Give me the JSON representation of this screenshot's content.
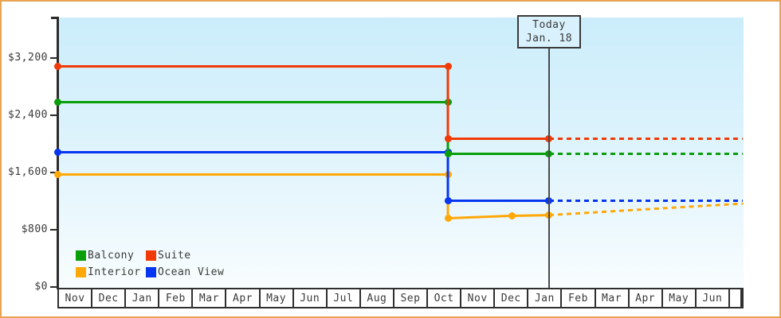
{
  "frame": {
    "border_color": "#e8a353",
    "background": "#ffffff"
  },
  "chart_data": {
    "type": "line",
    "title": "",
    "xlabel": "",
    "ylabel": "",
    "x_categories": [
      "Nov",
      "Dec",
      "Jan",
      "Feb",
      "Mar",
      "Apr",
      "May",
      "Jun",
      "Jul",
      "Aug",
      "Sep",
      "Oct",
      "Nov",
      "Dec",
      "Jan",
      "Feb",
      "Mar",
      "Apr",
      "May",
      "Jun"
    ],
    "y_ticks": [
      {
        "label": "$3,200",
        "value": 3200
      },
      {
        "label": "$2,400",
        "value": 2400
      },
      {
        "label": "$1,600",
        "value": 1600
      },
      {
        "label": "$800",
        "value": 800
      },
      {
        "label": "$0",
        "value": 0
      }
    ],
    "ylim": [
      0,
      3760
    ],
    "grid": false,
    "legend_position": "bottom-left",
    "plot_background_top": "#cbedfb",
    "plot_background_bottom": "#f8fdff",
    "annotations": {
      "today": {
        "line1": "Today",
        "line2": "Jan. 18",
        "x_month_index": 14.65
      }
    },
    "series": [
      {
        "name": "Interior",
        "color": "#ffa808",
        "solid": [
          [
            0,
            1570
          ],
          [
            11.65,
            1570
          ],
          [
            11.65,
            965
          ],
          [
            13.54,
            1000
          ],
          [
            14.65,
            1010
          ]
        ],
        "dashed": [
          [
            14.65,
            1010
          ],
          [
            20.4,
            1170
          ]
        ]
      },
      {
        "name": "Ocean View",
        "color": "#0535f0",
        "solid": [
          [
            0,
            1880
          ],
          [
            11.65,
            1880
          ],
          [
            11.65,
            1205
          ],
          [
            14.65,
            1205
          ]
        ],
        "dashed": [
          [
            14.65,
            1205
          ],
          [
            20.4,
            1205
          ]
        ]
      },
      {
        "name": "Balcony",
        "color": "#0a9e0a",
        "solid": [
          [
            0,
            2580
          ],
          [
            11.65,
            2580
          ],
          [
            11.65,
            1860
          ],
          [
            14.65,
            1860
          ]
        ],
        "dashed": [
          [
            14.65,
            1860
          ],
          [
            20.4,
            1860
          ]
        ]
      },
      {
        "name": "Suite",
        "color": "#f13a05",
        "solid": [
          [
            0,
            3080
          ],
          [
            11.65,
            3080
          ],
          [
            11.65,
            2075
          ],
          [
            14.65,
            2075
          ]
        ],
        "dashed": [
          [
            14.65,
            2075
          ],
          [
            20.4,
            2075
          ]
        ]
      }
    ],
    "legend": [
      {
        "label": "Balcony",
        "color": "#0a9e0a"
      },
      {
        "label": "Suite",
        "color": "#f13a05"
      },
      {
        "label": "Interior",
        "color": "#ffa808"
      },
      {
        "label": "Ocean View",
        "color": "#0535f0"
      }
    ]
  }
}
